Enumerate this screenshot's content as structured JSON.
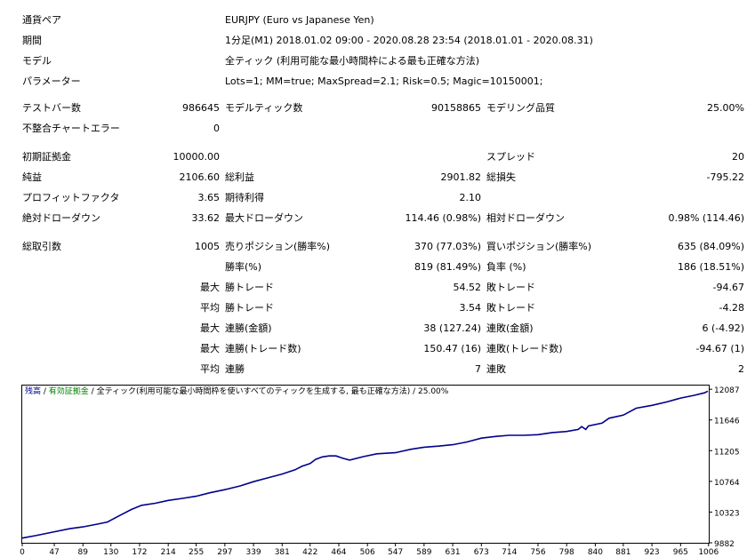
{
  "header_rows": [
    {
      "label": "通貨ペア",
      "value": "EURJPY (Euro vs Japanese Yen)"
    },
    {
      "label": "期間",
      "value": "1分足(M1) 2018.01.02 09:00 - 2020.08.28 23:54 (2018.01.01 - 2020.08.31)"
    },
    {
      "label": "モデル",
      "value": "全ティック (利用可能な最小時間枠による最も正確な方法)"
    },
    {
      "label": "パラメーター",
      "value": "Lots=1; MM=true; MaxSpread=2.1; Risk=0.5; Magic=10150001;"
    }
  ],
  "stats": {
    "test_bars_label": "テストバー数",
    "test_bars_value": "986645",
    "model_ticks_label": "モデルティック数",
    "model_ticks_value": "90158865",
    "model_quality_label": "モデリング品質",
    "model_quality_value": "25.00%",
    "mismatch_label": "不整合チャートエラー",
    "mismatch_value": "0",
    "initial_deposit_label": "初期証拠金",
    "initial_deposit_value": "10000.00",
    "spread_label": "スプレッド",
    "spread_value": "20",
    "net_profit_label": "純益",
    "net_profit_value": "2106.60",
    "gross_profit_label": "総利益",
    "gross_profit_value": "2901.82",
    "gross_loss_label": "総損失",
    "gross_loss_value": "-795.22",
    "profit_factor_label": "プロフィットファクタ",
    "profit_factor_value": "3.65",
    "expected_payoff_label": "期待利得",
    "expected_payoff_value": "2.10",
    "abs_dd_label": "絶対ドローダウン",
    "abs_dd_value": "33.62",
    "max_dd_label": "最大ドローダウン",
    "max_dd_value": "114.46 (0.98%)",
    "rel_dd_label": "相対ドローダウン",
    "rel_dd_value": "0.98% (114.46)",
    "total_trades_label": "総取引数",
    "total_trades_value": "1005",
    "short_label": "売りポジション(勝率%)",
    "short_value": "370 (77.03%)",
    "long_label": "買いポジション(勝率%)",
    "long_value": "635 (84.09%)",
    "win_pct_label": "勝率(%)",
    "win_pct_value": "819 (81.49%)",
    "loss_pct_label": "負率 (%)",
    "loss_pct_value": "186 (18.51%)",
    "max_prefix": "最大",
    "avg_prefix": "平均",
    "largest_win_label": "勝トレード",
    "largest_win_value": "54.52",
    "largest_loss_label": "敗トレード",
    "largest_loss_value": "-94.67",
    "avg_win_label": "勝トレード",
    "avg_win_value": "3.54",
    "avg_loss_label": "敗トレード",
    "avg_loss_value": "-4.28",
    "max_consec_win_money_label": "連勝(金額)",
    "max_consec_win_money_value": "38 (127.24)",
    "max_consec_loss_money_label": "連敗(金額)",
    "max_consec_loss_money_value": "6 (-4.92)",
    "max_consec_win_trades_label": "連勝(トレード数)",
    "max_consec_win_trades_value": "150.47 (16)",
    "max_consec_loss_trades_label": "連敗(トレード数)",
    "max_consec_loss_trades_value": "-94.67 (1)",
    "avg_consec_win_label": "連勝",
    "avg_consec_win_value": "7",
    "avg_consec_loss_label": "連敗",
    "avg_consec_loss_value": "2"
  },
  "legend": {
    "balance": "残高",
    "sep1": " / ",
    "equity": "有効証拠金",
    "sep2": " / ",
    "model": "全ティック(利用可能な最小時間枠を使いすべてのティックを生成する, 最も正確な方法)",
    "sep3": " / ",
    "quality": "25.00%"
  },
  "colors": {
    "balance_line": "#00008b",
    "equity_label": "#008000",
    "axis": "#000000"
  },
  "chart_data": {
    "type": "line",
    "title": "",
    "xlabel": "",
    "ylabel": "",
    "x_ticks": [
      0,
      47,
      89,
      130,
      172,
      214,
      255,
      297,
      339,
      381,
      422,
      464,
      506,
      547,
      589,
      631,
      673,
      714,
      756,
      798,
      840,
      881,
      923,
      965,
      1006
    ],
    "y_ticks": [
      9882,
      10323,
      10764,
      11205,
      11646,
      12087
    ],
    "xlim": [
      0,
      1005
    ],
    "ylim": [
      9882,
      12140
    ],
    "grid": false,
    "series": [
      {
        "x": [
          0,
          20,
          47,
          70,
          89,
          110,
          125,
          140,
          160,
          175,
          195,
          214,
          235,
          255,
          275,
          297,
          320,
          339,
          360,
          381,
          400,
          410,
          422,
          430,
          440,
          450,
          460,
          470,
          480,
          500,
          520,
          547,
          570,
          589,
          610,
          631,
          652,
          673,
          695,
          714,
          735,
          756,
          777,
          798,
          815,
          820,
          826,
          830,
          850,
          860,
          881,
          900,
          923,
          945,
          965,
          985,
          1000,
          1005
        ],
        "y": [
          9950,
          9985,
          10040,
          10085,
          10110,
          10150,
          10180,
          10260,
          10360,
          10420,
          10450,
          10490,
          10520,
          10550,
          10600,
          10645,
          10700,
          10760,
          10815,
          10870,
          10930,
          10980,
          11020,
          11080,
          11115,
          11130,
          11130,
          11095,
          11070,
          11120,
          11160,
          11175,
          11225,
          11255,
          11270,
          11290,
          11330,
          11385,
          11410,
          11425,
          11425,
          11435,
          11465,
          11480,
          11510,
          11550,
          11510,
          11560,
          11600,
          11670,
          11715,
          11815,
          11855,
          11905,
          11960,
          12000,
          12035,
          12060
        ]
      }
    ]
  }
}
